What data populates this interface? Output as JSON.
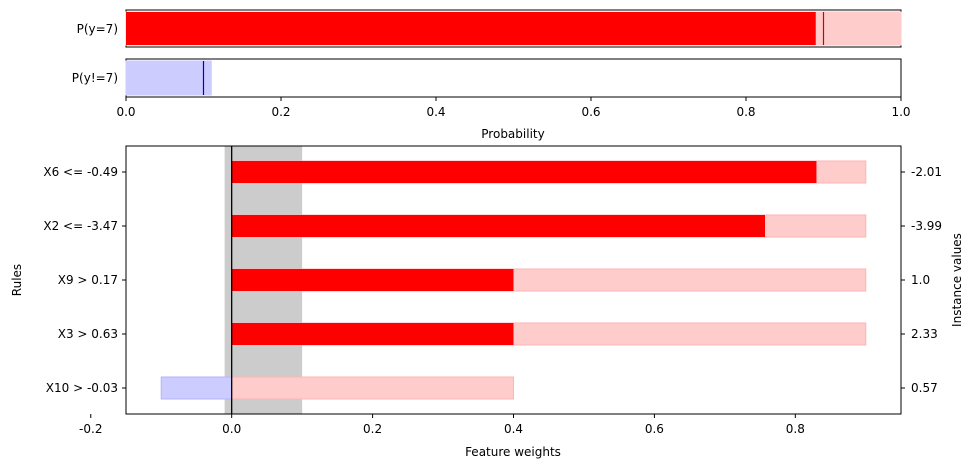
{
  "chart_data": [
    {
      "type": "bar",
      "orientation": "horizontal",
      "categories": [
        "P(y=7)",
        "P(y!=7)"
      ],
      "series": [
        {
          "name": "",
          "values": [
            0.89,
            0.0
          ],
          "color": "#ff0000"
        }
      ],
      "intervals": [
        [
          0.0,
          1.0
        ],
        [
          0.0,
          0.11
        ]
      ],
      "interval_colors": [
        "#ffcccc",
        "#ccccff"
      ],
      "point_estimates": [
        0.9,
        0.1
      ],
      "point_colors": [
        "#cc0000",
        "#0000cc"
      ],
      "xlabel": "Probability",
      "xlim": [
        0,
        1
      ],
      "xticks": [
        "0.0",
        "0.2",
        "0.4",
        "0.6",
        "0.8",
        "1.0"
      ]
    },
    {
      "type": "bar",
      "orientation": "horizontal",
      "categories": [
        "X6 <= -0.49",
        "X2 <= -3.47",
        "X9 > 0.17",
        "X3 > 0.63",
        "X10 > -0.03"
      ],
      "series": [
        {
          "name": "",
          "values": [
            0.83,
            0.757,
            0.4,
            0.4,
            0.0
          ],
          "color": "#ff0000"
        }
      ],
      "intervals": [
        [
          0.0,
          0.9
        ],
        [
          0.0,
          0.9
        ],
        [
          0.0,
          0.9
        ],
        [
          0.0,
          0.9
        ],
        [
          -0.1,
          0.4
        ]
      ],
      "instance_values": [
        "-2.01",
        "-3.99",
        "1.0",
        "2.33",
        "0.57"
      ],
      "shaded_band": [
        -0.01,
        0.1
      ],
      "xlabel": "Feature weights",
      "ylabel": "Rules",
      "ylabel_right": "Instance values",
      "xlim": [
        -0.15,
        0.95
      ],
      "xticks": [
        "-0.2",
        "0.0",
        "0.2",
        "0.4",
        "0.6",
        "0.8"
      ]
    }
  ]
}
